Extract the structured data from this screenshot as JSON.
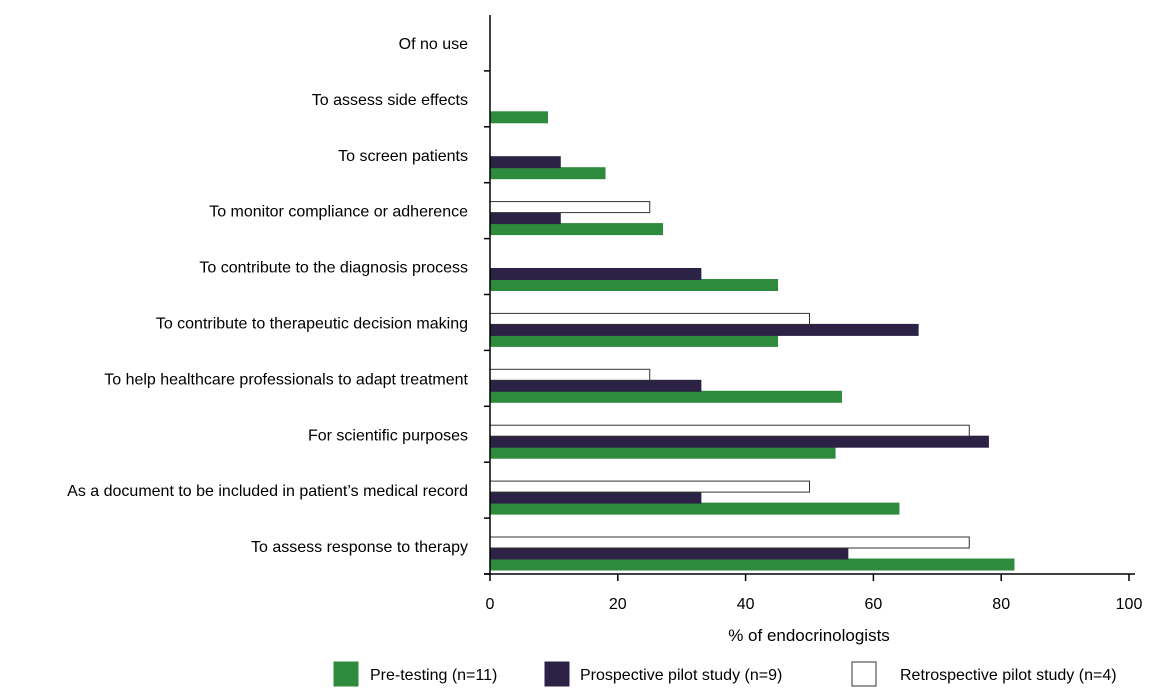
{
  "chart_data": {
    "type": "bar",
    "orientation": "horizontal",
    "title": "",
    "xlabel": "% of endocrinologists",
    "ylabel": "",
    "xlim": [
      0,
      100
    ],
    "xticks": [
      0,
      20,
      40,
      60,
      80,
      100
    ],
    "grid": false,
    "legend_position": "bottom",
    "categories": [
      "Of no use",
      "To assess side effects",
      "To screen patients",
      "To monitor compliance or adherence",
      "To contribute to the diagnosis process",
      "To contribute to therapeutic decision making",
      "To help healthcare professionals to adapt treatment",
      "For scientific purposes",
      "As a document to be included in patient’s medical record",
      "To assess response to therapy"
    ],
    "series": [
      {
        "name": "Pre-testing (n=11)",
        "color": "#2e8b3e",
        "stroke": "#2e8b3e",
        "values": [
          0,
          9,
          18,
          27,
          45,
          45,
          55,
          54,
          64,
          82
        ]
      },
      {
        "name": "Prospective pilot study (n=9)",
        "color": "#2b2245",
        "stroke": "#2b2245",
        "values": [
          0,
          0,
          11,
          11,
          33,
          67,
          33,
          78,
          33,
          56
        ]
      },
      {
        "name": "Retrospective pilot study (n=4)",
        "color": "#ffffff",
        "stroke": "#333333",
        "values": [
          0,
          0,
          0,
          25,
          0,
          50,
          25,
          75,
          50,
          75
        ]
      }
    ]
  }
}
